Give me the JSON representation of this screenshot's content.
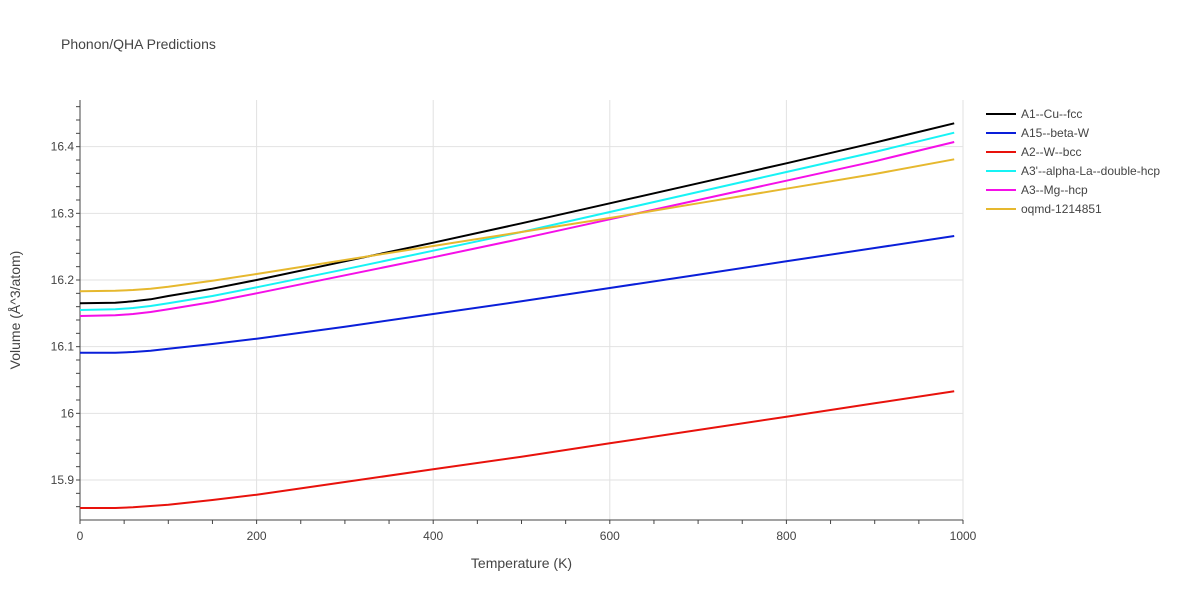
{
  "chart_data": {
    "type": "line",
    "title": "Phonon/QHA Predictions",
    "xlabel": "Temperature (K)",
    "ylabel": "Volume (Å^3/atom)",
    "xlim": [
      0,
      1000
    ],
    "ylim": [
      15.84,
      16.47
    ],
    "xticks": [
      0,
      200,
      400,
      600,
      800,
      1000
    ],
    "yticks": [
      15.9,
      16,
      16.1,
      16.2,
      16.3,
      16.4
    ],
    "x_tick_labels": [
      "0",
      "200",
      "400",
      "600",
      "800",
      "1000"
    ],
    "y_tick_labels": [
      "15.9",
      "16",
      "16.1",
      "16.2",
      "16.3",
      "16.4"
    ],
    "grid": true,
    "legend_position": "right",
    "series": [
      {
        "name": "A1--Cu--fcc",
        "color": "#000000",
        "x": [
          0,
          40,
          60,
          80,
          100,
          150,
          200,
          300,
          400,
          500,
          600,
          700,
          800,
          900,
          990
        ],
        "y": [
          16.165,
          16.166,
          16.168,
          16.171,
          16.176,
          16.187,
          16.2,
          16.228,
          16.256,
          16.285,
          16.315,
          16.345,
          16.375,
          16.406,
          16.435
        ]
      },
      {
        "name": "A15--beta-W",
        "color": "#0a1fd9",
        "x": [
          0,
          40,
          60,
          80,
          100,
          150,
          200,
          300,
          400,
          500,
          600,
          700,
          800,
          900,
          990
        ],
        "y": [
          16.091,
          16.091,
          16.092,
          16.094,
          16.097,
          16.104,
          16.112,
          16.13,
          16.149,
          16.168,
          16.188,
          16.208,
          16.228,
          16.248,
          16.266
        ]
      },
      {
        "name": "A2--W--bcc",
        "color": "#e8120c",
        "x": [
          0,
          40,
          60,
          80,
          100,
          150,
          200,
          300,
          400,
          500,
          600,
          700,
          800,
          900,
          990
        ],
        "y": [
          15.858,
          15.858,
          15.859,
          15.861,
          15.863,
          15.87,
          15.878,
          15.897,
          15.916,
          15.935,
          15.955,
          15.975,
          15.995,
          16.015,
          16.033
        ]
      },
      {
        "name": "A3'--alpha-La--double-hcp",
        "color": "#17f3f5",
        "x": [
          0,
          40,
          60,
          80,
          100,
          150,
          200,
          300,
          400,
          500,
          600,
          700,
          800,
          900,
          990
        ],
        "y": [
          16.155,
          16.156,
          16.158,
          16.161,
          16.165,
          16.176,
          16.189,
          16.216,
          16.244,
          16.272,
          16.302,
          16.332,
          16.362,
          16.392,
          16.421
        ]
      },
      {
        "name": "A3--Mg--hcp",
        "color": "#f50fe8",
        "x": [
          0,
          40,
          60,
          80,
          100,
          150,
          200,
          300,
          400,
          500,
          600,
          700,
          800,
          900,
          990
        ],
        "y": [
          16.146,
          16.147,
          16.149,
          16.152,
          16.156,
          16.167,
          16.18,
          16.207,
          16.234,
          16.262,
          16.291,
          16.32,
          16.349,
          16.378,
          16.407
        ]
      },
      {
        "name": "oqmd-1214851",
        "color": "#e6b82e",
        "x": [
          0,
          40,
          60,
          80,
          100,
          150,
          200,
          300,
          400,
          500,
          600,
          700,
          800,
          900,
          990
        ],
        "y": [
          16.183,
          16.184,
          16.185,
          16.187,
          16.19,
          16.199,
          16.209,
          16.23,
          16.251,
          16.272,
          16.293,
          16.315,
          16.337,
          16.359,
          16.381
        ]
      }
    ]
  }
}
